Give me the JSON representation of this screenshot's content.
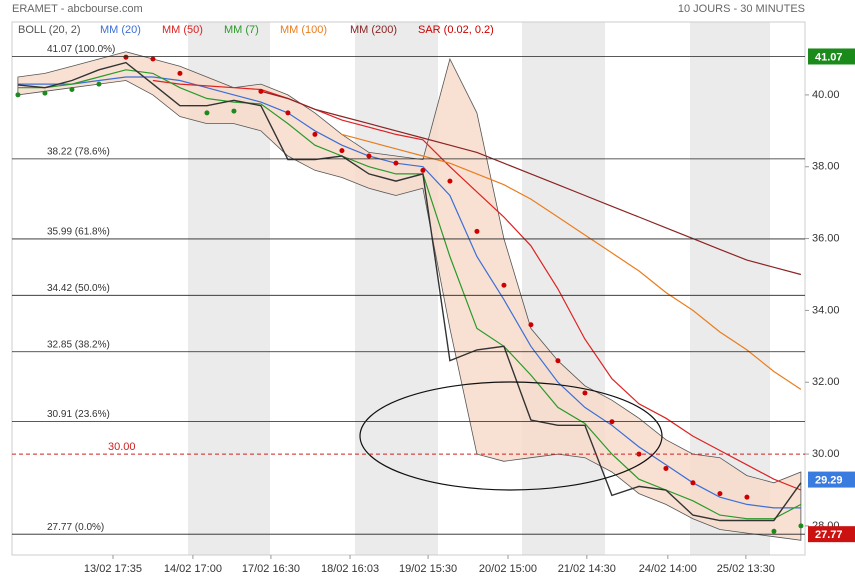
{
  "chart_data": {
    "type": "line",
    "title": "ERAMET - abcbourse.com",
    "subtitle": "10 JOURS - 30 MINUTES",
    "xlim": [
      -0.22,
      29.15
    ],
    "ylim": [
      27.19,
      42.03
    ],
    "xticks": [
      {
        "value": 3.52,
        "label": "13/02 17:35"
      },
      {
        "value": 6.48,
        "label": "14/02 17:00"
      },
      {
        "value": 9.37,
        "label": "17/02 16:30"
      },
      {
        "value": 12.3,
        "label": "18/02 16:03"
      },
      {
        "value": 15.19,
        "label": "19/02 15:30"
      },
      {
        "value": 18.15,
        "label": "20/02 15:00"
      },
      {
        "value": 21.07,
        "label": "21/02 14:30"
      },
      {
        "value": 24.07,
        "label": "24/02 14:00"
      },
      {
        "value": 26.96,
        "label": "25/02 13:30"
      }
    ],
    "yticks": [
      {
        "value": 28,
        "label": "28.00"
      },
      {
        "value": 30,
        "label": "30.00"
      },
      {
        "value": 32,
        "label": "32.00"
      },
      {
        "value": 34,
        "label": "34.00"
      },
      {
        "value": 36,
        "label": "36.00"
      },
      {
        "value": 38,
        "label": "38.00"
      },
      {
        "value": 40,
        "label": "40.00"
      }
    ],
    "price_color": "#333333",
    "values": [
      40.28,
      40.2,
      40.4,
      40.7,
      40.9,
      40.3,
      39.7,
      39.7,
      39.85,
      39.7,
      38.2,
      38.2,
      38.3,
      37.8,
      37.6,
      37.8,
      32.6,
      32.9,
      33.0,
      30.95,
      30.8,
      30.8,
      28.85,
      29.1,
      29.0,
      28.3,
      28.15,
      28.15,
      28.15,
      29.2
    ],
    "bollinger": {
      "name": "BOLL (20, 2)",
      "color": "#555555",
      "fill": "#f7dccb",
      "upper": [
        40.5,
        40.6,
        40.8,
        41.0,
        41.2,
        41.0,
        40.8,
        40.5,
        40.2,
        40.3,
        40.0,
        39.5,
        38.9,
        38.4,
        38.3,
        38.2,
        41.0,
        39.5,
        36.0,
        33.5,
        32.6,
        31.9,
        31.5,
        31.0,
        30.4,
        30.0,
        29.9,
        29.4,
        29.2,
        29.5
      ],
      "lower": [
        40.0,
        40.1,
        40.2,
        40.3,
        40.4,
        40.0,
        39.4,
        39.2,
        39.2,
        39.0,
        38.3,
        37.9,
        37.7,
        37.4,
        37.2,
        37.4,
        33.5,
        30.0,
        29.8,
        29.9,
        30.0,
        29.9,
        29.5,
        28.9,
        28.6,
        28.2,
        27.9,
        27.8,
        27.7,
        27.6
      ]
    },
    "series": [
      {
        "name": "MM (20)",
        "color": "#3c6fd6",
        "values": [
          40.3,
          40.3,
          40.3,
          40.4,
          40.5,
          40.5,
          40.4,
          40.2,
          40.0,
          39.8,
          39.5,
          39.0,
          38.6,
          38.3,
          38.1,
          38.0,
          37.2,
          35.5,
          34.3,
          33.0,
          32.0,
          31.3,
          30.8,
          30.2,
          29.7,
          29.2,
          28.8,
          28.6,
          28.5,
          28.5
        ]
      },
      {
        "name": "MM (50)",
        "color": "#dd2222",
        "values": [
          null,
          null,
          null,
          null,
          null,
          40.4,
          40.3,
          40.25,
          40.2,
          40.15,
          39.9,
          39.6,
          39.3,
          39.1,
          38.9,
          38.75,
          38.0,
          37.3,
          36.6,
          35.8,
          34.6,
          33.2,
          32.1,
          31.4,
          31.0,
          30.5,
          30.1,
          29.7,
          29.3,
          29.0
        ]
      },
      {
        "name": "MM (7)",
        "color": "#2a9a2a",
        "values": [
          40.2,
          40.2,
          40.3,
          40.5,
          40.7,
          40.6,
          40.2,
          39.9,
          39.8,
          39.75,
          39.2,
          38.6,
          38.3,
          38.0,
          37.8,
          37.8,
          35.5,
          33.5,
          33.0,
          32.2,
          31.3,
          30.85,
          30.0,
          29.3,
          29.0,
          28.7,
          28.3,
          28.2,
          28.2,
          28.6
        ]
      },
      {
        "name": "MM (100)",
        "color": "#ea7d1f",
        "values": [
          null,
          null,
          null,
          null,
          null,
          null,
          null,
          null,
          null,
          null,
          null,
          null,
          38.9,
          38.7,
          38.5,
          38.3,
          38.1,
          37.8,
          37.5,
          37.1,
          36.6,
          36.1,
          35.6,
          35.1,
          34.5,
          34.0,
          33.4,
          32.9,
          32.3,
          31.8
        ]
      },
      {
        "name": "MM (200)",
        "color": "#8b2424",
        "values": [
          null,
          null,
          null,
          null,
          null,
          null,
          null,
          null,
          null,
          40.1,
          39.9,
          39.6,
          39.4,
          39.2,
          39.0,
          38.8,
          38.6,
          38.4,
          38.1,
          37.8,
          37.5,
          37.2,
          36.9,
          36.6,
          36.3,
          36.0,
          35.7,
          35.4,
          35.2,
          35.0
        ]
      }
    ],
    "sar": {
      "name": "SAR (0.02, 0.2)",
      "color": "#cc0000",
      "below_color": "#1e8a1e",
      "values": [
        40.0,
        40.05,
        40.15,
        40.3,
        41.05,
        41.0,
        40.6,
        39.5,
        39.55,
        40.1,
        39.5,
        38.9,
        38.45,
        38.3,
        38.1,
        37.9,
        37.6,
        36.2,
        34.7,
        33.6,
        32.6,
        31.7,
        30.9,
        30.0,
        29.6,
        29.2,
        28.9,
        28.8,
        27.85,
        28.0
      ]
    },
    "levels": [
      {
        "value": 41.07,
        "label": "41.07 (100.0%)"
      },
      {
        "value": 38.22,
        "label": "38.22 (78.6%)"
      },
      {
        "value": 35.99,
        "label": "35.99 (61.8%)"
      },
      {
        "value": 34.42,
        "label": "34.42 (50.0%)"
      },
      {
        "value": 32.85,
        "label": "32.85 (38.2%)"
      },
      {
        "value": 30.91,
        "label": "30.91 (23.6%)"
      },
      {
        "value": 27.77,
        "label": "27.77 (0.0%)"
      }
    ],
    "alert": {
      "value": 30,
      "label": "30.00",
      "color": "#cc2222"
    },
    "markers": [
      {
        "value": 41.07,
        "label": "41.07",
        "color": "#1a8a1a"
      },
      {
        "value": 29.29,
        "label": "29.29",
        "color": "#3a7be0"
      },
      {
        "value": 27.77,
        "label": "27.77",
        "color": "#cc1111"
      }
    ]
  }
}
